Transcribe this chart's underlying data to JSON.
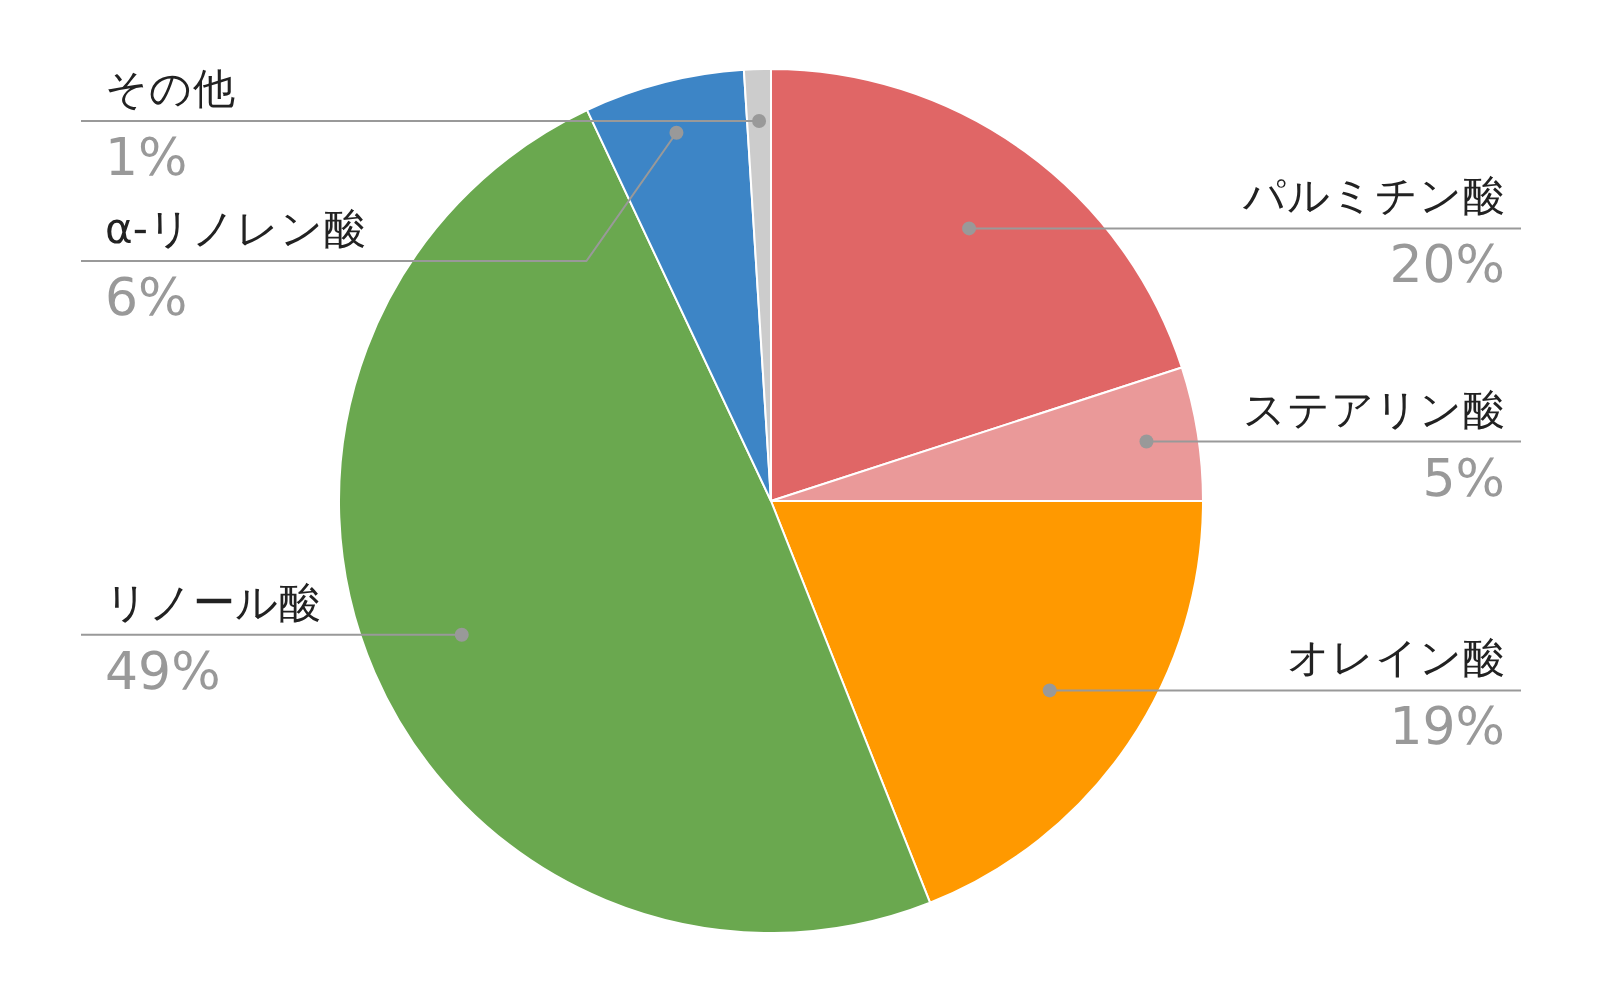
{
  "chart_data": {
    "type": "pie",
    "categories": [
      "パルミチン酸",
      "ステアリン酸",
      "オレイン酸",
      "リノール酸",
      "α-リノレン酸",
      "その他"
    ],
    "values": [
      20,
      5,
      19,
      49,
      6,
      1
    ],
    "colors": [
      "#e06666",
      "#ea9999",
      "#ff9900",
      "#6aa84f",
      "#3d85c6",
      "#cccccc"
    ],
    "value_labels": [
      "20%",
      "5%",
      "19%",
      "49%",
      "6%",
      "1%"
    ]
  }
}
